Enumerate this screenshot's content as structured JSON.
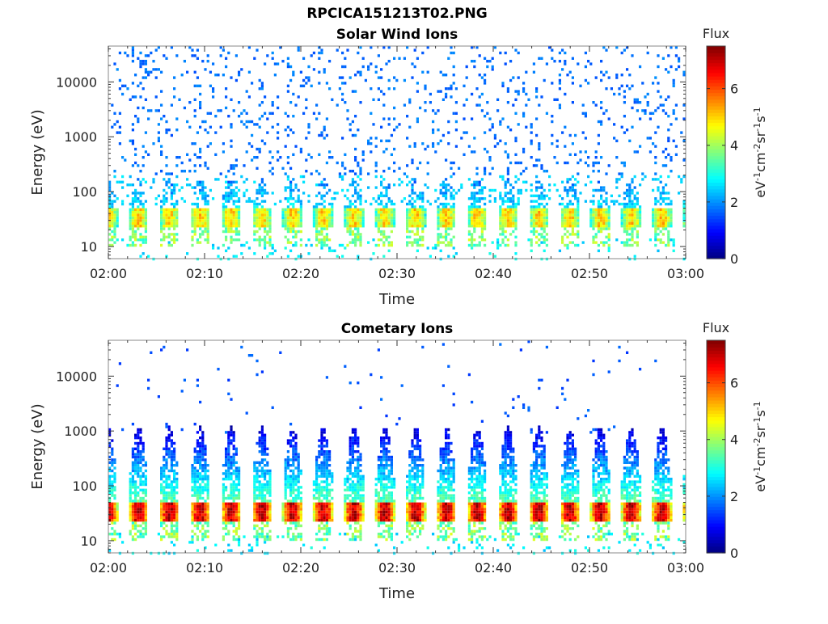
{
  "figure_title": "RPCICA151213T02.PNG",
  "chart_data": [
    {
      "type": "heatmap",
      "title": "Solar Wind Ions",
      "xlabel": "Time",
      "ylabel": "Energy (eV)",
      "x_ticks": [
        "02:00",
        "02:10",
        "02:20",
        "02:30",
        "02:40",
        "02:50",
        "03:00"
      ],
      "xlim": [
        "02:00",
        "03:00"
      ],
      "y_ticks": [
        "10",
        "100",
        "1000",
        "10000"
      ],
      "y_scale": "log",
      "ylim": [
        6,
        45000
      ],
      "colorbar": {
        "label_top": "Flux",
        "units": "eV-1cm-2sr-1s-1",
        "ticks": [
          "0",
          "2",
          "4",
          "6"
        ],
        "range": [
          0,
          7.5
        ],
        "colormap": "jet"
      },
      "pulse_period_min": 3.2,
      "peak_energy_eV": 35,
      "peak_flux": 5.0,
      "background_flux": 1.5
    },
    {
      "type": "heatmap",
      "title": "Cometary Ions",
      "xlabel": "Time",
      "ylabel": "Energy (eV)",
      "x_ticks": [
        "02:00",
        "02:10",
        "02:20",
        "02:30",
        "02:40",
        "02:50",
        "03:00"
      ],
      "xlim": [
        "02:00",
        "03:00"
      ],
      "y_ticks": [
        "10",
        "100",
        "1000",
        "10000"
      ],
      "y_scale": "log",
      "ylim": [
        6,
        45000
      ],
      "colorbar": {
        "label_top": "Flux",
        "units": "eV-1cm-2sr-1s-1",
        "ticks": [
          "0",
          "2",
          "4",
          "6"
        ],
        "range": [
          0,
          7.5
        ],
        "colormap": "jet"
      },
      "pulse_period_min": 3.2,
      "peak_energy_eV": 35,
      "peak_flux": 7.0,
      "background_flux": 1.3
    }
  ]
}
